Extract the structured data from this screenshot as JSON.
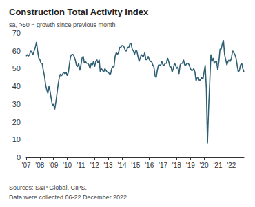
{
  "chart_data": {
    "type": "line",
    "title": "Construction Total Activity Index",
    "subtitle": "sa, >50 = growth since previous month",
    "footnotes": [
      "Sources: S&P Global, CIPS.",
      "Data were collected 06-22 December 2022."
    ],
    "categories": [
      "'07",
      null,
      null,
      null,
      null,
      null,
      null,
      null,
      null,
      null,
      null,
      null,
      "'08",
      null,
      null,
      null,
      null,
      null,
      null,
      null,
      null,
      null,
      null,
      null,
      "'09",
      null,
      null,
      null,
      null,
      null,
      null,
      null,
      null,
      null,
      null,
      null,
      "'10",
      null,
      null,
      null,
      null,
      null,
      null,
      null,
      null,
      null,
      null,
      null,
      "'11",
      null,
      null,
      null,
      null,
      null,
      null,
      null,
      null,
      null,
      null,
      null,
      "'12",
      null,
      null,
      null,
      null,
      null,
      null,
      null,
      null,
      null,
      null,
      null,
      "'13",
      null,
      null,
      null,
      null,
      null,
      null,
      null,
      null,
      null,
      null,
      null,
      "'14",
      null,
      null,
      null,
      null,
      null,
      null,
      null,
      null,
      null,
      null,
      null,
      "'15",
      null,
      null,
      null,
      null,
      null,
      null,
      null,
      null,
      null,
      null,
      null,
      "'16",
      null,
      null,
      null,
      null,
      null,
      null,
      null,
      null,
      null,
      null,
      null,
      "'17",
      null,
      null,
      null,
      null,
      null,
      null,
      null,
      null,
      null,
      null,
      null,
      "'18",
      null,
      null,
      null,
      null,
      null,
      null,
      null,
      null,
      null,
      null,
      null,
      "'19",
      null,
      null,
      null,
      null,
      null,
      null,
      null,
      null,
      null,
      null,
      null,
      "'20",
      null,
      null,
      null,
      null,
      null,
      null,
      null,
      null,
      null,
      null,
      null,
      "'21",
      null,
      null,
      null,
      null,
      null,
      null,
      null,
      null,
      null,
      null,
      null,
      "'22",
      null,
      null,
      null,
      null,
      null,
      null,
      null,
      null,
      null,
      null,
      null
    ],
    "values": [
      57,
      58,
      57,
      58,
      60,
      59,
      58,
      60,
      62,
      65,
      60,
      56,
      55,
      53,
      53,
      49,
      46,
      41,
      38,
      36,
      40,
      37,
      33,
      29,
      30,
      27,
      31,
      36,
      41,
      45,
      47,
      46,
      47,
      48,
      47,
      48,
      46,
      48,
      53,
      57,
      58,
      58,
      57,
      55,
      52,
      51,
      53,
      49,
      52,
      56,
      57,
      53,
      54,
      53,
      53,
      52,
      50,
      53,
      52,
      54,
      51,
      54,
      55,
      53,
      55,
      48,
      50,
      49,
      48,
      50,
      49,
      48,
      48,
      47,
      47,
      50,
      51,
      51,
      57,
      59,
      58,
      59,
      62,
      62,
      63,
      63,
      62,
      60,
      60,
      62,
      62,
      64,
      64,
      61,
      60,
      58,
      60,
      60,
      57,
      54,
      56,
      58,
      57,
      57,
      59,
      55,
      55,
      57,
      55,
      54,
      54,
      52,
      51,
      46,
      45,
      49,
      52,
      52,
      52,
      54,
      52,
      52,
      53,
      53,
      56,
      54,
      51,
      51,
      48,
      50,
      53,
      52,
      50,
      51,
      47,
      52,
      53,
      53,
      55,
      52,
      52,
      53,
      53,
      52,
      50,
      49,
      49,
      50,
      48,
      43,
      45,
      45,
      43,
      44,
      45,
      44,
      48,
      52,
      39,
      8,
      28,
      43,
      58,
      54,
      56,
      53,
      54,
      54,
      49,
      54,
      61,
      61,
      64,
      66,
      58,
      55,
      52,
      54,
      55,
      54,
      56,
      60,
      59,
      58,
      56,
      52,
      48,
      49,
      52,
      53,
      50,
      48
    ],
    "color": "#2f5f73",
    "ylim": [
      0,
      70
    ],
    "yticks": [
      0,
      10,
      20,
      30,
      40,
      50,
      60,
      70
    ],
    "grid": false
  }
}
